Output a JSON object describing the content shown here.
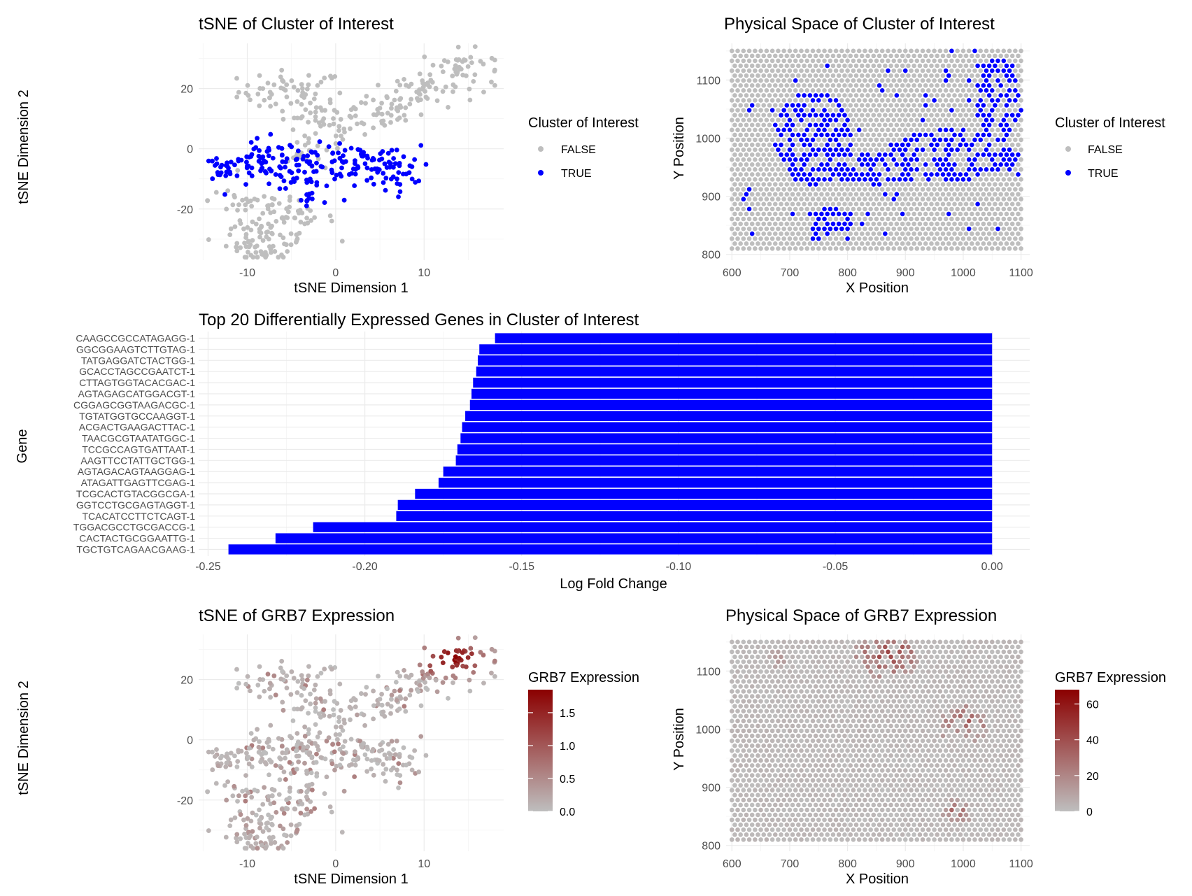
{
  "colors": {
    "cluster_false": "#bebebe",
    "cluster_true": "#0000ff",
    "bar_fill": "#0000ff",
    "expr_low": "#bebebe",
    "expr_high": "#8b0000"
  },
  "chart_data": [
    {
      "id": "tsne_cluster",
      "type": "scatter",
      "title": "tSNE of Cluster of Interest",
      "xlabel": "tSNE Dimension 1",
      "ylabel": "tSNE Dimension 2",
      "xlim": [
        -15.5,
        19
      ],
      "ylim": [
        -37,
        35
      ],
      "xticks": [
        -10,
        0,
        10
      ],
      "yticks": [
        -20,
        0,
        20
      ],
      "legend": {
        "title": "Cluster of Interest",
        "entries": [
          "FALSE",
          "TRUE"
        ],
        "placement": "right"
      },
      "series": [
        {
          "name": "FALSE",
          "color": "#bebebe",
          "clusters": [
            {
              "cx": -5,
              "cy": 19,
              "sx": 3,
              "sy": 3.5,
              "n": 55
            },
            {
              "cx": -2,
              "cy": 7,
              "sx": 2.5,
              "sy": 4,
              "n": 40
            },
            {
              "cx": 4,
              "cy": 12,
              "sx": 3,
              "sy": 3,
              "n": 45
            },
            {
              "cx": 10,
              "cy": 20,
              "sx": 3,
              "sy": 3,
              "n": 50
            },
            {
              "cx": 14,
              "cy": 27,
              "sx": 2.2,
              "sy": 3,
              "n": 40
            },
            {
              "cx": -8,
              "cy": -31,
              "sx": 2.2,
              "sy": 3.5,
              "n": 70
            },
            {
              "cx": -6,
              "cy": -23,
              "sx": 3,
              "sy": 3,
              "n": 45
            },
            {
              "cx": -10,
              "cy": -17,
              "sx": 2.5,
              "sy": 3,
              "n": 25
            },
            {
              "cx": -3,
              "cy": -3,
              "sx": 2,
              "sy": 2,
              "n": 15
            }
          ]
        },
        {
          "name": "TRUE",
          "color": "#0000ff",
          "clusters": [
            {
              "cx": -13,
              "cy": -7,
              "sx": 1,
              "sy": 2,
              "n": 20
            },
            {
              "cx": -8,
              "cy": -5,
              "sx": 2,
              "sy": 4,
              "n": 60
            },
            {
              "cx": -3,
              "cy": -6,
              "sx": 2,
              "sy": 3.5,
              "n": 50
            },
            {
              "cx": 2,
              "cy": -5,
              "sx": 1.8,
              "sy": 3,
              "n": 40
            },
            {
              "cx": 6,
              "cy": -7,
              "sx": 1.8,
              "sy": 4,
              "n": 50
            },
            {
              "cx": -3,
              "cy": -17,
              "sx": 1,
              "sy": 2,
              "n": 10
            }
          ]
        }
      ]
    },
    {
      "id": "space_cluster",
      "type": "scatter",
      "title": "Physical Space of Cluster of Interest",
      "xlabel": "X Position",
      "ylabel": "Y Position",
      "xlim": [
        590,
        1115
      ],
      "ylim": [
        790,
        1163
      ],
      "xticks": [
        600,
        700,
        800,
        900,
        1000,
        1100
      ],
      "yticks": [
        800,
        900,
        1000,
        1100
      ],
      "grid_spots": {
        "x0": 600,
        "x1": 1100,
        "dx": 10,
        "y0": 810,
        "y1": 1150,
        "dy": 8.5
      },
      "legend": {
        "title": "Cluster of Interest",
        "entries": [
          "FALSE",
          "TRUE"
        ],
        "placement": "right"
      },
      "true_regions": [
        {
          "cx": 740,
          "cy": 1000,
          "rx": 70,
          "ry": 80
        },
        {
          "cx": 850,
          "cy": 950,
          "rx": 90,
          "ry": 30
        },
        {
          "cx": 980,
          "cy": 970,
          "rx": 120,
          "ry": 45
        },
        {
          "cx": 1060,
          "cy": 1070,
          "rx": 40,
          "ry": 70
        },
        {
          "cx": 770,
          "cy": 850,
          "rx": 50,
          "ry": 30
        }
      ]
    },
    {
      "id": "top20_genes",
      "type": "bar",
      "orientation": "horizontal",
      "title": "Top 20 Differentially Expressed Genes in Cluster of Interest",
      "xlabel": "Log Fold Change",
      "ylabel": "Gene",
      "xlim": [
        -0.253,
        0.012
      ],
      "xticks": [
        -0.25,
        -0.2,
        -0.15,
        -0.1,
        -0.05,
        0.0
      ],
      "xtick_labels": [
        "-0.25",
        "-0.20",
        "-0.15",
        "-0.10",
        "-0.05",
        "0.00"
      ],
      "categories": [
        "CAAGCCGCCATAGAGG-1",
        "GGCGGAAGTCTTGTAG-1",
        "TATGAGGATCTACTGG-1",
        "GCACCTAGCCGAATCT-1",
        "CTTAGTGGTACACGAC-1",
        "AGTAGAGCATGGACGT-1",
        "CGGAGCGGTAAGACGC-1",
        "TGTATGGTGCCAAGGT-1",
        "ACGACTGAAGACTTAC-1",
        "TAACGCGTAATATGGC-1",
        "TCCGCCAGTGATTAAT-1",
        "AAGTTCCTATTGCTGG-1",
        "AGTAGACAGTAAGGAG-1",
        "ATAGATTGAGTTCGAG-1",
        "TCGCACTGTACGGCGA-1",
        "GGTCCTGCGAGTAGGT-1",
        "TCACATCCTTCTCAGT-1",
        "TGGACGCCTGCGACCG-1",
        "CACTACTGCGGAATTG-1",
        "TGCTGTCAGAACGAAG-1"
      ],
      "values": [
        -0.1585,
        -0.1635,
        -0.164,
        -0.1645,
        -0.1655,
        -0.166,
        -0.1665,
        -0.168,
        -0.169,
        -0.1695,
        -0.1705,
        -0.171,
        -0.175,
        -0.1765,
        -0.184,
        -0.1895,
        -0.19,
        -0.2165,
        -0.2285,
        -0.2435
      ]
    },
    {
      "id": "tsne_grb7",
      "type": "scatter",
      "title": "tSNE of GRB7 Expression",
      "xlabel": "tSNE Dimension 1",
      "ylabel": "tSNE Dimension 2",
      "xlim": [
        -15.5,
        19
      ],
      "ylim": [
        -37,
        35
      ],
      "xticks": [
        -10,
        0,
        10
      ],
      "yticks": [
        -20,
        0,
        20
      ],
      "legend": {
        "title": "GRB7 Expression",
        "type": "gradient",
        "range": [
          0,
          1.85
        ],
        "ticks": [
          0.0,
          0.5,
          1.0,
          1.5
        ],
        "tick_labels": [
          "0.0",
          "0.5",
          "1.0",
          "1.5"
        ]
      },
      "high_center": {
        "cx": 13,
        "cy": 27
      }
    },
    {
      "id": "space_grb7",
      "type": "scatter",
      "title": "Physical Space of GRB7 Expression",
      "xlabel": "X Position",
      "ylabel": "Y Position",
      "xlim": [
        590,
        1115
      ],
      "ylim": [
        790,
        1163
      ],
      "xticks": [
        600,
        700,
        800,
        900,
        1000,
        1100
      ],
      "yticks": [
        800,
        900,
        1000,
        1100
      ],
      "legend": {
        "title": "GRB7 Expression",
        "type": "gradient",
        "range": [
          0,
          68
        ],
        "ticks": [
          0,
          20,
          40,
          60
        ],
        "tick_labels": [
          "0",
          "20",
          "40",
          "60"
        ]
      },
      "hotspots": [
        {
          "cx": 870,
          "cy": 1130,
          "r": 60,
          "peak": 55
        },
        {
          "cx": 1000,
          "cy": 1010,
          "r": 45,
          "peak": 50
        },
        {
          "cx": 990,
          "cy": 860,
          "r": 30,
          "peak": 45
        },
        {
          "cx": 680,
          "cy": 1120,
          "r": 25,
          "peak": 20
        }
      ]
    }
  ]
}
